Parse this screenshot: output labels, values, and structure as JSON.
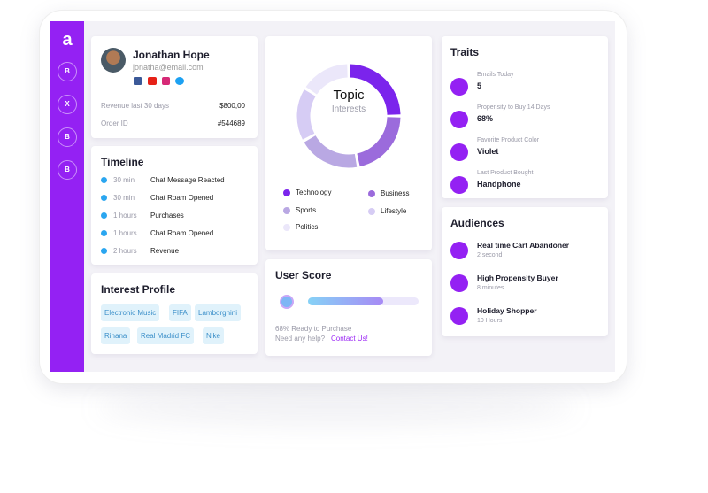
{
  "sidebar": {
    "logo": "a",
    "items": [
      "B",
      "X",
      "B",
      "B"
    ]
  },
  "profile": {
    "name": "Jonathan Hope",
    "email": "jonatha@email.com",
    "rows": [
      [
        "Revenue last 30 days",
        "$800,00"
      ],
      [
        "Order ID",
        "#544689"
      ]
    ]
  },
  "timeline": {
    "title": "Timeline",
    "events": [
      {
        "time": "30 min",
        "label": "Chat Message Reacted"
      },
      {
        "time": "30 min",
        "label": "Chat Roam Opened"
      },
      {
        "time": "1 hours",
        "label": "Purchases"
      },
      {
        "time": "1 hours",
        "label": "Chat Roam Opened"
      },
      {
        "time": "2 hours",
        "label": "Revenue"
      }
    ]
  },
  "interest_profile": {
    "title": "Interest Profile",
    "tags": [
      "Electronic Music",
      "FIFA",
      "Lamborghini",
      "Rihana",
      "Real Madrid FC",
      "Nike"
    ]
  },
  "topics": {
    "title": "Topic",
    "subtitle": "Interests",
    "segments": [
      {
        "name": "Technology",
        "color": "#7b24ec",
        "value": 25
      },
      {
        "name": "Business",
        "color": "#9b6bdc",
        "value": 22
      },
      {
        "name": "Sports",
        "color": "#b9a8e3",
        "value": 20
      },
      {
        "name": "Lifestyle",
        "color": "#d6ccf4",
        "value": 17
      },
      {
        "name": "Politics",
        "color": "#ebe7fa",
        "value": 16
      }
    ]
  },
  "user_score": {
    "title": "User Score",
    "value": 68,
    "label": "68% Ready to Purchase",
    "help": "Need any help?",
    "link": "Contact Us!"
  },
  "traits": {
    "title": "Traits",
    "items": [
      {
        "label": "Emails Today",
        "value": "5"
      },
      {
        "label": "Propensity to Buy 14 Days",
        "value": "68%"
      },
      {
        "label": "Favorite Product Color",
        "value": "Violet"
      },
      {
        "label": "Last Product Bought",
        "value": "Handphone"
      }
    ]
  },
  "audiences": {
    "title": "Audiences",
    "items": [
      {
        "name": "Real time Cart Abandoner",
        "sub": "2 second"
      },
      {
        "name": "High Propensity Buyer",
        "sub": "8 minutes"
      },
      {
        "name": "Holiday Shopper",
        "sub": "10 Hours"
      }
    ]
  }
}
